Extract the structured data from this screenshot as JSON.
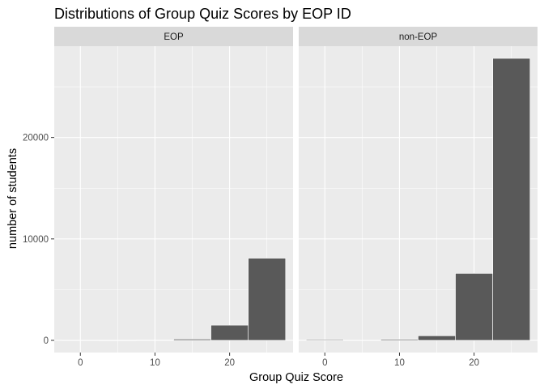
{
  "chart_data": {
    "type": "bar",
    "title": "Distributions of Group Quiz Scores by EOP ID",
    "xlabel": "Group Quiz Score",
    "ylabel": "number of students",
    "x_ticks": [
      0,
      10,
      20
    ],
    "y_ticks": [
      0,
      10000,
      20000
    ],
    "x_tick_labels": [
      "0",
      "10",
      "20"
    ],
    "y_tick_labels": [
      "0",
      "10000",
      "20000"
    ],
    "xlim": [
      -3.5,
      28.5
    ],
    "ylim": [
      -1200,
      29000
    ],
    "bin_width": 5,
    "grid": true,
    "bar_color": "#595959",
    "bar_outline": "#ffffff",
    "panel_background": "#ebebeb",
    "strip_background": "#d9d9d9",
    "panels": [
      {
        "name": "EOP",
        "bins": [
          {
            "x": 0,
            "count": 10
          },
          {
            "x": 5,
            "count": 5
          },
          {
            "x": 10,
            "count": 20
          },
          {
            "x": 15,
            "count": 120
          },
          {
            "x": 20,
            "count": 1500
          },
          {
            "x": 25,
            "count": 8100
          }
        ]
      },
      {
        "name": "non-EOP",
        "bins": [
          {
            "x": 0,
            "count": 80
          },
          {
            "x": 5,
            "count": 10
          },
          {
            "x": 10,
            "count": 100
          },
          {
            "x": 15,
            "count": 450
          },
          {
            "x": 20,
            "count": 6600
          },
          {
            "x": 25,
            "count": 27800
          }
        ]
      }
    ]
  }
}
